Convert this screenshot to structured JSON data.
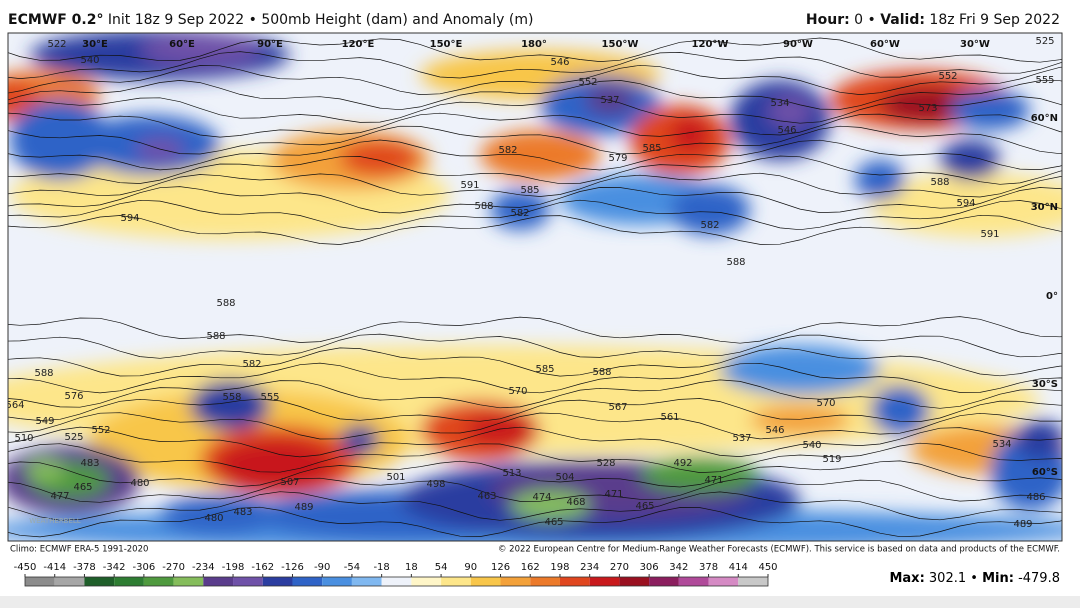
{
  "header": {
    "model": "ECMWF 0.2°",
    "init": "Init 18z 9 Sep 2022 • 500mb Height (dam) and Anomaly (m)",
    "hour_label": "Hour:",
    "hour_rest": "0 •",
    "valid_label": "Valid:",
    "valid_rest": "18z Fri 9 Sep 2022"
  },
  "map": {
    "lon_labels": [
      "30°E",
      "60°E",
      "90°E",
      "120°E",
      "150°E",
      "180°",
      "150°W",
      "120°W",
      "90°W",
      "60°W",
      "30°W"
    ],
    "lat_labels": [
      "60°N",
      "30°N",
      "0°",
      "30°S",
      "60°S"
    ],
    "watermark": "WEATHERBELL",
    "contour_labels": [
      522,
      540,
      525,
      546,
      552,
      552,
      555,
      573,
      537,
      534,
      546,
      582,
      579,
      585,
      591,
      585,
      588,
      582,
      588,
      594,
      591,
      582,
      588,
      594,
      588,
      588,
      582,
      588,
      576,
      558,
      555,
      585,
      588,
      570,
      567,
      561,
      570,
      537,
      546,
      540,
      519,
      534,
      528,
      504,
      492,
      471,
      474,
      468,
      465,
      465,
      471,
      489,
      480,
      483,
      501,
      498,
      507,
      513,
      463,
      483,
      477,
      465,
      480,
      510,
      525,
      552,
      549,
      486,
      489,
      564
    ]
  },
  "footer": {
    "climo": "Climo: ECMWF ERA-5 1991-2020",
    "copyright": "© 2022 European Centre for Medium-Range Weather Forecasts (ECMWF). This service is based on data and products of the ECMWF.",
    "max_label": "Max:",
    "max": 302.1,
    "sep": "•",
    "min_label": "Min:",
    "min": -479.8
  },
  "colorbar": {
    "ticks": [
      -450,
      -414,
      -378,
      -342,
      -306,
      -270,
      -234,
      -198,
      -162,
      -126,
      -90,
      -54,
      -18,
      18,
      54,
      90,
      126,
      162,
      198,
      234,
      270,
      306,
      342,
      378,
      414,
      450
    ],
    "colors": [
      "#8c8c8c",
      "#a6a6a6",
      "#1f5f2a",
      "#2e7d32",
      "#4f9a3e",
      "#85bd5b",
      "#5a3c8c",
      "#6f51a8",
      "#2b3da0",
      "#2f63c7",
      "#4a8fe0",
      "#80b8f0",
      "#eef2fa",
      "#fff6c8",
      "#fde68a",
      "#f8c64a",
      "#f3a13a",
      "#ec7a2a",
      "#e0461f",
      "#c8191c",
      "#9a1020",
      "#8b1e5e",
      "#b04a9a",
      "#d58ac4",
      "#c8c8c8"
    ]
  }
}
